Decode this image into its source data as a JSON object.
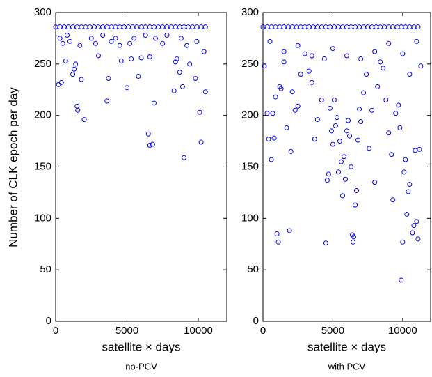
{
  "chart_data": [
    {
      "type": "scatter",
      "xlabel": "satellite × days",
      "ylabel": "Number of CLK epoch per day",
      "caption": "no-PCV",
      "color": "#0000ff",
      "xlim": [
        0,
        12000
      ],
      "ylim": [
        0,
        300
      ],
      "xticks": [
        0,
        5000,
        10000
      ],
      "yticks": [
        0,
        50,
        100,
        150,
        200,
        250,
        300
      ],
      "x": [
        0,
        300,
        600,
        900,
        1200,
        1500,
        1800,
        2100,
        2400,
        2700,
        3000,
        3300,
        3600,
        3900,
        4200,
        4500,
        4800,
        5100,
        5400,
        5700,
        6000,
        6300,
        6600,
        6900,
        7200,
        7500,
        7800,
        8100,
        8400,
        8700,
        9000,
        9300,
        9600,
        9900,
        10200,
        10500,
        200,
        400,
        700,
        1200,
        1300,
        1400,
        1500,
        1550,
        1800,
        2000,
        3000,
        3600,
        3700,
        4600,
        5000,
        5300,
        5800,
        6000,
        6500,
        6600,
        6800,
        6900,
        8300,
        8500,
        8700,
        8900,
        9000,
        9400,
        9800,
        10100,
        10200,
        10500,
        300,
        500,
        800,
        1000,
        1700,
        2500,
        2800,
        3300,
        3900,
        4200,
        4500,
        5200,
        5500,
        6300,
        6600,
        7000,
        7500,
        7800,
        8400,
        8800,
        9200,
        9900,
        10400
      ],
      "values": [
        286,
        286,
        286,
        286,
        286,
        286,
        286,
        286,
        286,
        286,
        286,
        286,
        286,
        286,
        286,
        286,
        286,
        286,
        286,
        286,
        286,
        286,
        286,
        286,
        286,
        286,
        286,
        286,
        286,
        286,
        286,
        286,
        286,
        286,
        286,
        286,
        230,
        232,
        253,
        240,
        245,
        250,
        209,
        205,
        235,
        196,
        258,
        214,
        236,
        253,
        227,
        255,
        238,
        256,
        182,
        171,
        172,
        212,
        224,
        255,
        242,
        228,
        159,
        250,
        236,
        203,
        174,
        223,
        275,
        270,
        278,
        272,
        268,
        275,
        270,
        278,
        272,
        275,
        268,
        270,
        275,
        278,
        257,
        275,
        270,
        278,
        252,
        275,
        268,
        272,
        262
      ]
    },
    {
      "type": "scatter",
      "xlabel": "satellite × days",
      "caption": "with PCV",
      "color": "#0000ff",
      "xlim": [
        0,
        12000
      ],
      "ylim": [
        0,
        300
      ],
      "xticks": [
        0,
        5000,
        10000
      ],
      "yticks": [
        0,
        50,
        100,
        150,
        200,
        250,
        300
      ],
      "x": [
        0,
        300,
        600,
        900,
        1200,
        1500,
        1800,
        2100,
        2400,
        2700,
        3000,
        3300,
        3600,
        3900,
        4200,
        4500,
        4800,
        5100,
        5400,
        5700,
        6000,
        6300,
        6600,
        6900,
        7200,
        7500,
        7800,
        8100,
        8400,
        8700,
        9000,
        9300,
        9600,
        9900,
        10200,
        10500,
        10800,
        11100,
        100,
        300,
        400,
        600,
        700,
        800,
        900,
        1000,
        1100,
        1200,
        1300,
        1500,
        1700,
        1900,
        2000,
        2100,
        2300,
        2500,
        2700,
        3000,
        3300,
        3500,
        3700,
        3900,
        4200,
        4400,
        4500,
        4600,
        4700,
        4800,
        4900,
        5000,
        5100,
        5200,
        5300,
        5400,
        5500,
        5600,
        5700,
        5800,
        5900,
        6000,
        6100,
        6200,
        6300,
        6400,
        6450,
        6500,
        6600,
        6700,
        6800,
        6900,
        7000,
        7200,
        7400,
        7600,
        7800,
        8000,
        8200,
        8400,
        8600,
        8800,
        9000,
        9200,
        9300,
        9500,
        9700,
        9800,
        9900,
        10000,
        10100,
        10200,
        10300,
        10400,
        10500,
        10700,
        10800,
        10900,
        11000,
        11100,
        11200,
        11300,
        500,
        1500,
        2500,
        3500,
        5000,
        6000,
        7000,
        8000,
        9000,
        10000,
        10500,
        11000
      ],
      "values": [
        286,
        286,
        286,
        286,
        286,
        286,
        286,
        286,
        286,
        286,
        286,
        286,
        286,
        286,
        286,
        286,
        286,
        286,
        286,
        286,
        286,
        286,
        286,
        286,
        286,
        286,
        286,
        286,
        286,
        286,
        286,
        286,
        286,
        286,
        286,
        286,
        286,
        286,
        248,
        202,
        177,
        157,
        202,
        178,
        218,
        85,
        77,
        228,
        226,
        252,
        188,
        88,
        165,
        223,
        205,
        209,
        240,
        260,
        243,
        232,
        177,
        196,
        215,
        255,
        76,
        137,
        143,
        207,
        185,
        172,
        215,
        190,
        198,
        145,
        175,
        155,
        122,
        160,
        138,
        185,
        195,
        180,
        150,
        84,
        77,
        82,
        113,
        127,
        176,
        206,
        194,
        222,
        240,
        168,
        205,
        135,
        228,
        252,
        246,
        215,
        183,
        162,
        118,
        202,
        210,
        188,
        40,
        77,
        145,
        157,
        104,
        126,
        133,
        86,
        93,
        166,
        97,
        80,
        167,
        248,
        272,
        262,
        268,
        258,
        265,
        258,
        255,
        262,
        270,
        260,
        240,
        272
      ]
    }
  ]
}
